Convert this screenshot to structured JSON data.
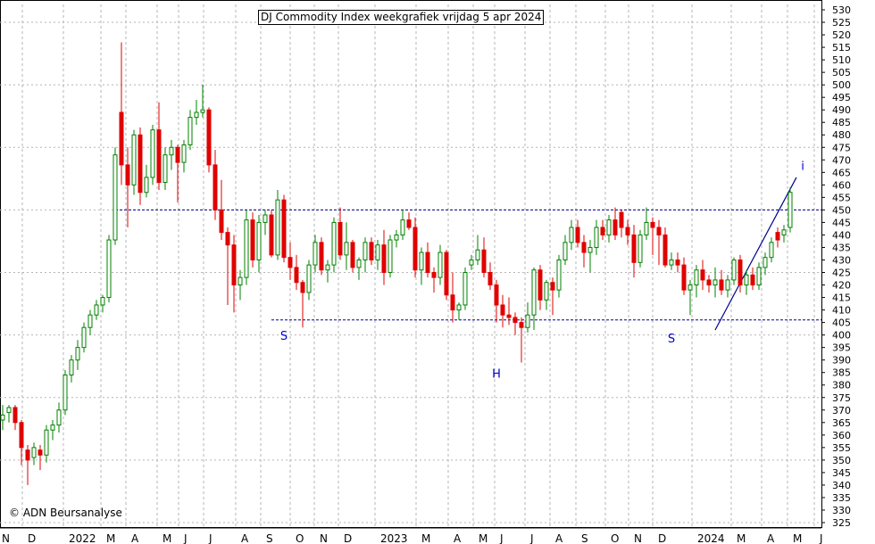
{
  "title": "DJ Commodity Index weekgrafiek vrijdag 5 apr 2024",
  "copyright": "© ADN Beursanalyse",
  "colors": {
    "up": "#008000",
    "down": "#e00000",
    "guide": "#00008b",
    "annotation": "#0000cc",
    "grid": "#b4b4b4"
  },
  "chart_data": {
    "type": "candlestick",
    "title": "DJ Commodity Index weekgrafiek vrijdag 5 apr 2024",
    "ylim": [
      325,
      530
    ],
    "y_ticks": [
      325,
      330,
      335,
      340,
      345,
      350,
      355,
      360,
      365,
      370,
      375,
      380,
      385,
      390,
      395,
      400,
      405,
      410,
      415,
      420,
      425,
      430,
      435,
      440,
      445,
      450,
      455,
      460,
      465,
      470,
      475,
      480,
      485,
      490,
      495,
      500,
      505,
      510,
      515,
      520,
      525,
      530
    ],
    "x_ticks": [
      "N",
      "D",
      "2022",
      "M",
      "A",
      "M",
      "J",
      "J",
      "A",
      "S",
      "O",
      "N",
      "D",
      "2023",
      "M",
      "A",
      "M",
      "J",
      "J",
      "A",
      "S",
      "O",
      "N",
      "D",
      "2024",
      "M",
      "A",
      "M",
      "J"
    ],
    "grid": true,
    "candles": [
      {
        "o": 366,
        "h": 372,
        "l": 362,
        "c": 368
      },
      {
        "o": 369,
        "h": 372,
        "l": 365,
        "c": 371
      },
      {
        "o": 371,
        "h": 372,
        "l": 362,
        "c": 365
      },
      {
        "o": 365,
        "h": 366,
        "l": 348,
        "c": 355
      },
      {
        "o": 354,
        "h": 356,
        "l": 340,
        "c": 350
      },
      {
        "o": 351,
        "h": 357,
        "l": 348,
        "c": 355
      },
      {
        "o": 354,
        "h": 356,
        "l": 346,
        "c": 352
      },
      {
        "o": 352,
        "h": 364,
        "l": 349,
        "c": 362
      },
      {
        "o": 362,
        "h": 366,
        "l": 358,
        "c": 364
      },
      {
        "o": 364,
        "h": 373,
        "l": 361,
        "c": 370
      },
      {
        "o": 370,
        "h": 386,
        "l": 368,
        "c": 384
      },
      {
        "o": 384,
        "h": 392,
        "l": 381,
        "c": 390
      },
      {
        "o": 390,
        "h": 398,
        "l": 386,
        "c": 395
      },
      {
        "o": 395,
        "h": 405,
        "l": 393,
        "c": 403
      },
      {
        "o": 403,
        "h": 410,
        "l": 400,
        "c": 408
      },
      {
        "o": 408,
        "h": 414,
        "l": 406,
        "c": 412
      },
      {
        "o": 412,
        "h": 416,
        "l": 409,
        "c": 415
      },
      {
        "o": 415,
        "h": 440,
        "l": 413,
        "c": 438
      },
      {
        "o": 438,
        "h": 475,
        "l": 436,
        "c": 472
      },
      {
        "o": 489,
        "h": 517,
        "l": 460,
        "c": 468
      },
      {
        "o": 468,
        "h": 475,
        "l": 443,
        "c": 460
      },
      {
        "o": 460,
        "h": 482,
        "l": 456,
        "c": 480
      },
      {
        "o": 480,
        "h": 483,
        "l": 452,
        "c": 457
      },
      {
        "o": 457,
        "h": 468,
        "l": 455,
        "c": 463
      },
      {
        "o": 463,
        "h": 484,
        "l": 460,
        "c": 482
      },
      {
        "o": 482,
        "h": 493,
        "l": 458,
        "c": 461
      },
      {
        "o": 461,
        "h": 475,
        "l": 458,
        "c": 472
      },
      {
        "o": 472,
        "h": 478,
        "l": 466,
        "c": 475
      },
      {
        "o": 475,
        "h": 476,
        "l": 453,
        "c": 469
      },
      {
        "o": 469,
        "h": 478,
        "l": 465,
        "c": 476
      },
      {
        "o": 476,
        "h": 490,
        "l": 474,
        "c": 487
      },
      {
        "o": 487,
        "h": 494,
        "l": 484,
        "c": 489
      },
      {
        "o": 489,
        "h": 500,
        "l": 487,
        "c": 490
      },
      {
        "o": 490,
        "h": 491,
        "l": 465,
        "c": 468
      },
      {
        "o": 468,
        "h": 474,
        "l": 446,
        "c": 450
      },
      {
        "o": 450,
        "h": 462,
        "l": 438,
        "c": 441
      },
      {
        "o": 441,
        "h": 443,
        "l": 412,
        "c": 436
      },
      {
        "o": 436,
        "h": 440,
        "l": 409,
        "c": 420
      },
      {
        "o": 420,
        "h": 426,
        "l": 414,
        "c": 423
      },
      {
        "o": 423,
        "h": 450,
        "l": 420,
        "c": 446
      },
      {
        "o": 446,
        "h": 449,
        "l": 427,
        "c": 430
      },
      {
        "o": 430,
        "h": 448,
        "l": 425,
        "c": 445
      },
      {
        "o": 445,
        "h": 450,
        "l": 440,
        "c": 448
      },
      {
        "o": 448,
        "h": 450,
        "l": 431,
        "c": 432
      },
      {
        "o": 432,
        "h": 458,
        "l": 430,
        "c": 454
      },
      {
        "o": 454,
        "h": 456,
        "l": 429,
        "c": 431
      },
      {
        "o": 431,
        "h": 437,
        "l": 422,
        "c": 427
      },
      {
        "o": 427,
        "h": 432,
        "l": 418,
        "c": 421
      },
      {
        "o": 421,
        "h": 422,
        "l": 403,
        "c": 417
      },
      {
        "o": 417,
        "h": 430,
        "l": 414,
        "c": 428
      },
      {
        "o": 428,
        "h": 440,
        "l": 425,
        "c": 437
      },
      {
        "o": 437,
        "h": 439,
        "l": 424,
        "c": 426
      },
      {
        "o": 426,
        "h": 430,
        "l": 421,
        "c": 428
      },
      {
        "o": 428,
        "h": 447,
        "l": 425,
        "c": 445
      },
      {
        "o": 445,
        "h": 451,
        "l": 430,
        "c": 432
      },
      {
        "o": 432,
        "h": 445,
        "l": 426,
        "c": 437
      },
      {
        "o": 437,
        "h": 438,
        "l": 425,
        "c": 427
      },
      {
        "o": 427,
        "h": 431,
        "l": 422,
        "c": 430
      },
      {
        "o": 430,
        "h": 439,
        "l": 425,
        "c": 437
      },
      {
        "o": 437,
        "h": 439,
        "l": 428,
        "c": 430
      },
      {
        "o": 430,
        "h": 438,
        "l": 426,
        "c": 436
      },
      {
        "o": 436,
        "h": 442,
        "l": 420,
        "c": 425
      },
      {
        "o": 425,
        "h": 440,
        "l": 423,
        "c": 438
      },
      {
        "o": 438,
        "h": 442,
        "l": 435,
        "c": 440
      },
      {
        "o": 440,
        "h": 450,
        "l": 438,
        "c": 446
      },
      {
        "o": 446,
        "h": 449,
        "l": 442,
        "c": 443
      },
      {
        "o": 443,
        "h": 447,
        "l": 423,
        "c": 426
      },
      {
        "o": 426,
        "h": 435,
        "l": 420,
        "c": 433
      },
      {
        "o": 433,
        "h": 437,
        "l": 423,
        "c": 425
      },
      {
        "o": 425,
        "h": 427,
        "l": 417,
        "c": 423
      },
      {
        "o": 423,
        "h": 436,
        "l": 420,
        "c": 433
      },
      {
        "o": 433,
        "h": 434,
        "l": 414,
        "c": 416
      },
      {
        "o": 416,
        "h": 425,
        "l": 405,
        "c": 410
      },
      {
        "o": 410,
        "h": 413,
        "l": 406,
        "c": 412
      },
      {
        "o": 412,
        "h": 427,
        "l": 410,
        "c": 425
      },
      {
        "o": 428,
        "h": 432,
        "l": 426,
        "c": 430
      },
      {
        "o": 430,
        "h": 440,
        "l": 428,
        "c": 434
      },
      {
        "o": 434,
        "h": 439,
        "l": 423,
        "c": 425
      },
      {
        "o": 425,
        "h": 429,
        "l": 418,
        "c": 420
      },
      {
        "o": 420,
        "h": 422,
        "l": 405,
        "c": 412
      },
      {
        "o": 412,
        "h": 416,
        "l": 403,
        "c": 408
      },
      {
        "o": 408,
        "h": 415,
        "l": 404,
        "c": 407
      },
      {
        "o": 407,
        "h": 409,
        "l": 400,
        "c": 405
      },
      {
        "o": 405,
        "h": 407,
        "l": 389,
        "c": 403
      },
      {
        "o": 403,
        "h": 413,
        "l": 401,
        "c": 408
      },
      {
        "o": 408,
        "h": 427,
        "l": 402,
        "c": 426
      },
      {
        "o": 426,
        "h": 428,
        "l": 410,
        "c": 414
      },
      {
        "o": 414,
        "h": 422,
        "l": 410,
        "c": 421
      },
      {
        "o": 421,
        "h": 423,
        "l": 408,
        "c": 418
      },
      {
        "o": 418,
        "h": 432,
        "l": 415,
        "c": 430
      },
      {
        "o": 430,
        "h": 440,
        "l": 428,
        "c": 437
      },
      {
        "o": 437,
        "h": 446,
        "l": 434,
        "c": 443
      },
      {
        "o": 443,
        "h": 446,
        "l": 435,
        "c": 437
      },
      {
        "o": 437,
        "h": 440,
        "l": 427,
        "c": 433
      },
      {
        "o": 433,
        "h": 438,
        "l": 425,
        "c": 435
      },
      {
        "o": 435,
        "h": 446,
        "l": 432,
        "c": 443
      },
      {
        "o": 443,
        "h": 446,
        "l": 438,
        "c": 440
      },
      {
        "o": 440,
        "h": 448,
        "l": 437,
        "c": 446
      },
      {
        "o": 446,
        "h": 451,
        "l": 438,
        "c": 440
      },
      {
        "o": 449,
        "h": 450,
        "l": 439,
        "c": 443
      },
      {
        "o": 443,
        "h": 446,
        "l": 436,
        "c": 440
      },
      {
        "o": 440,
        "h": 444,
        "l": 423,
        "c": 429
      },
      {
        "o": 429,
        "h": 442,
        "l": 427,
        "c": 440
      },
      {
        "o": 440,
        "h": 451,
        "l": 438,
        "c": 445
      },
      {
        "o": 445,
        "h": 447,
        "l": 432,
        "c": 443
      },
      {
        "o": 443,
        "h": 446,
        "l": 428,
        "c": 440
      },
      {
        "o": 440,
        "h": 443,
        "l": 427,
        "c": 428
      },
      {
        "o": 428,
        "h": 433,
        "l": 426,
        "c": 430
      },
      {
        "o": 430,
        "h": 433,
        "l": 425,
        "c": 428
      },
      {
        "o": 428,
        "h": 431,
        "l": 416,
        "c": 418
      },
      {
        "o": 418,
        "h": 422,
        "l": 408,
        "c": 420
      },
      {
        "o": 420,
        "h": 428,
        "l": 415,
        "c": 426
      },
      {
        "o": 426,
        "h": 430,
        "l": 418,
        "c": 422
      },
      {
        "o": 422,
        "h": 424,
        "l": 417,
        "c": 420
      },
      {
        "o": 420,
        "h": 427,
        "l": 415,
        "c": 422
      },
      {
        "o": 422,
        "h": 426,
        "l": 416,
        "c": 418
      },
      {
        "o": 418,
        "h": 424,
        "l": 415,
        "c": 422
      },
      {
        "o": 422,
        "h": 431,
        "l": 420,
        "c": 430
      },
      {
        "o": 430,
        "h": 432,
        "l": 417,
        "c": 420
      },
      {
        "o": 420,
        "h": 426,
        "l": 416,
        "c": 424
      },
      {
        "o": 424,
        "h": 427,
        "l": 418,
        "c": 420
      },
      {
        "o": 420,
        "h": 429,
        "l": 418,
        "c": 427
      },
      {
        "o": 427,
        "h": 433,
        "l": 424,
        "c": 431
      },
      {
        "o": 431,
        "h": 439,
        "l": 429,
        "c": 437
      },
      {
        "o": 441,
        "h": 443,
        "l": 435,
        "c": 438
      },
      {
        "o": 440,
        "h": 444,
        "l": 437,
        "c": 442
      },
      {
        "o": 443,
        "h": 459,
        "l": 441,
        "c": 457
      }
    ],
    "annotations": [
      {
        "text": "S",
        "x": 45,
        "y": 398
      },
      {
        "text": "H",
        "x": 79,
        "y": 383
      },
      {
        "text": "S",
        "x": 107,
        "y": 397
      },
      {
        "text": "i",
        "x": 128,
        "y": 466
      }
    ],
    "guides": [
      {
        "type": "hline",
        "y": 450,
        "from": 18,
        "to": 136
      },
      {
        "type": "hline",
        "y": 406,
        "from": 43,
        "to": 136
      },
      {
        "type": "trend",
        "x1": 114,
        "y1": 402,
        "x2": 127,
        "y2": 463
      }
    ]
  }
}
